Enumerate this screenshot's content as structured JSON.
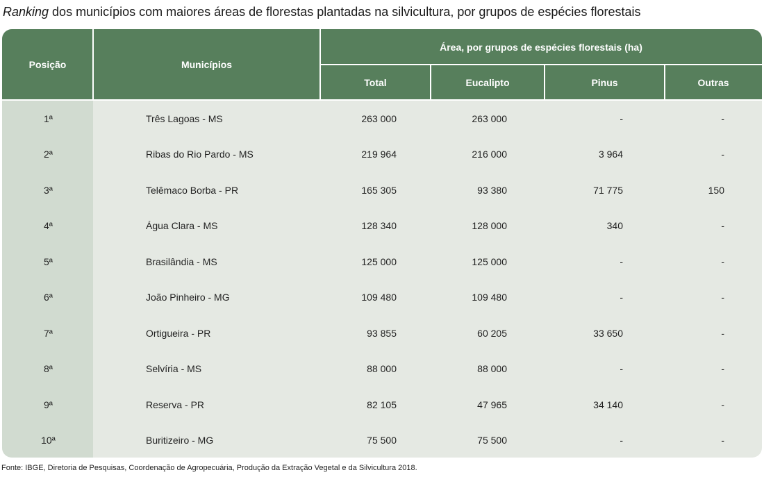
{
  "title": {
    "italic": "Ranking",
    "rest": " dos municípios com maiores áreas de florestas plantadas na silvicultura, por grupos de espécies florestais"
  },
  "headers": {
    "posicao": "Posição",
    "municipios": "Municípios",
    "area_group": "Área, por grupos de espécies florestais (ha)",
    "total": "Total",
    "eucalipto": "Eucalipto",
    "pinus": "Pinus",
    "outras": "Outras"
  },
  "rows": [
    {
      "pos": "1ª",
      "municipio": "Três Lagoas - MS",
      "total": "263 000",
      "eucalipto": "263 000",
      "pinus": "-",
      "outras": "-"
    },
    {
      "pos": "2ª",
      "municipio": "Ribas do Rio Pardo - MS",
      "total": "219 964",
      "eucalipto": "216 000",
      "pinus": "3 964",
      "outras": "-"
    },
    {
      "pos": "3ª",
      "municipio": "Telêmaco Borba - PR",
      "total": "165 305",
      "eucalipto": "93 380",
      "pinus": "71 775",
      "outras": "150"
    },
    {
      "pos": "4ª",
      "municipio": "Água Clara - MS",
      "total": "128 340",
      "eucalipto": "128 000",
      "pinus": "340",
      "outras": "-"
    },
    {
      "pos": "5ª",
      "municipio": "Brasilândia - MS",
      "total": "125 000",
      "eucalipto": "125 000",
      "pinus": "-",
      "outras": "-"
    },
    {
      "pos": "6ª",
      "municipio": "João Pinheiro - MG",
      "total": "109 480",
      "eucalipto": "109 480",
      "pinus": "-",
      "outras": "-"
    },
    {
      "pos": "7ª",
      "municipio": "Ortigueira - PR",
      "total": "93 855",
      "eucalipto": "60 205",
      "pinus": "33 650",
      "outras": "-"
    },
    {
      "pos": "8ª",
      "municipio": "Selvíria - MS",
      "total": "88 000",
      "eucalipto": "88 000",
      "pinus": "-",
      "outras": "-"
    },
    {
      "pos": "9ª",
      "municipio": "Reserva - PR",
      "total": "82 105",
      "eucalipto": "47 965",
      "pinus": "34 140",
      "outras": "-"
    },
    {
      "pos": "10ª",
      "municipio": "Buritizeiro - MG",
      "total": "75 500",
      "eucalipto": "75 500",
      "pinus": "-",
      "outras": "-"
    }
  ],
  "source": "Fonte: IBGE, Diretoria de Pesquisas, Coordenação de Agropecuária, Produção da Extração Vegetal e da Silvicultura 2018.",
  "colors": {
    "header_green": "#577f5c",
    "body_bg": "#e5e9e3",
    "position_col_bg": "#d1dbd0"
  }
}
